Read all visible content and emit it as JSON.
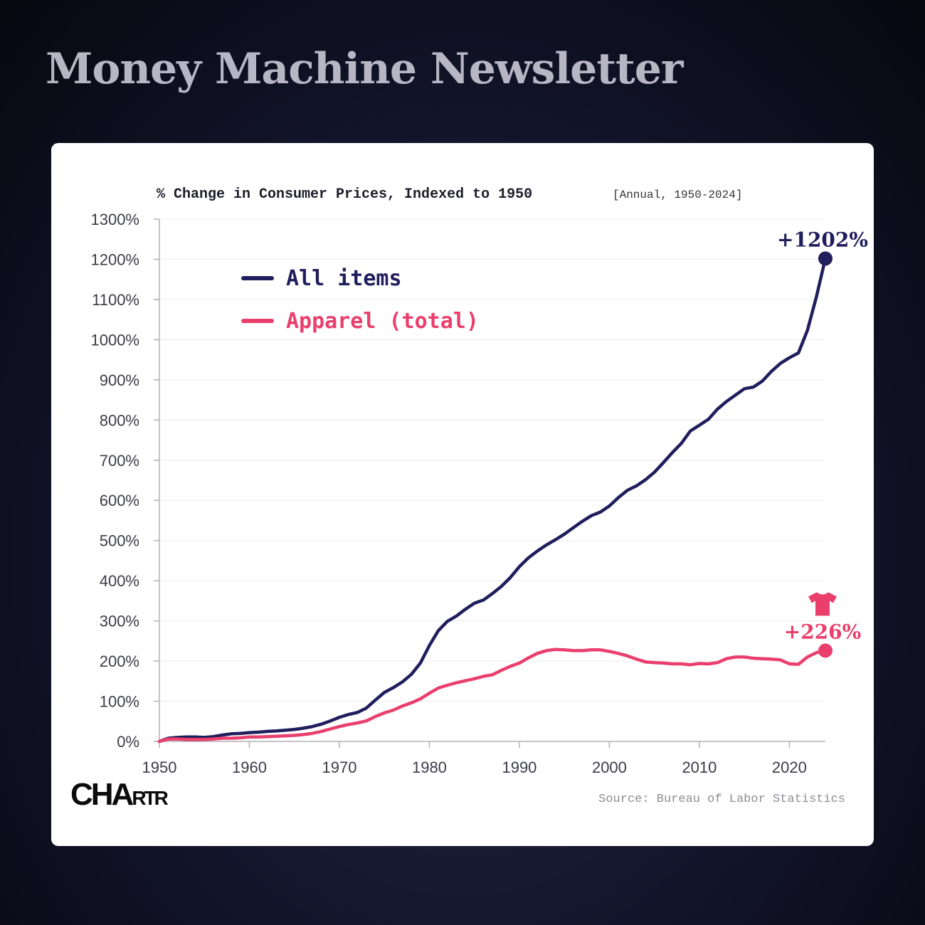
{
  "page": {
    "newsletter_title": "Money Machine Newsletter",
    "brand": {
      "main": "CHA",
      "small": "RTR"
    },
    "source": "Source: Bureau of Labor Statistics"
  },
  "colors": {
    "all_items": "#201e5c",
    "apparel": "#ea3f6c"
  },
  "chart_data": {
    "type": "line",
    "title": "% Change in Consumer Prices, Indexed to 1950",
    "subtitle": "[Annual, 1950-2024]",
    "xlabel": "",
    "ylabel": "",
    "xlim": [
      1950,
      2024
    ],
    "ylim": [
      0,
      1300
    ],
    "x_ticks": [
      1950,
      1960,
      1970,
      1980,
      1990,
      2000,
      2010,
      2020
    ],
    "y_ticks": [
      0,
      100,
      200,
      300,
      400,
      500,
      600,
      700,
      800,
      900,
      1000,
      1100,
      1200,
      1300
    ],
    "y_tick_suffix": "%",
    "grid": "horizontal",
    "legend_position": "top-left",
    "series": [
      {
        "name": "All items",
        "color_key": "all_items",
        "end_label": "+1202%",
        "x": [
          1950,
          1951,
          1952,
          1953,
          1954,
          1955,
          1956,
          1957,
          1958,
          1959,
          1960,
          1961,
          1962,
          1963,
          1964,
          1965,
          1966,
          1967,
          1968,
          1969,
          1970,
          1971,
          1972,
          1973,
          1974,
          1975,
          1976,
          1977,
          1978,
          1979,
          1980,
          1981,
          1982,
          1983,
          1984,
          1985,
          1986,
          1987,
          1988,
          1989,
          1990,
          1991,
          1992,
          1993,
          1994,
          1995,
          1996,
          1997,
          1998,
          1999,
          2000,
          2001,
          2002,
          2003,
          2004,
          2005,
          2006,
          2007,
          2008,
          2009,
          2010,
          2011,
          2012,
          2013,
          2014,
          2015,
          2016,
          2017,
          2018,
          2019,
          2020,
          2021,
          2022,
          2023,
          2024
        ],
        "values": [
          0,
          8,
          10,
          11,
          11,
          10,
          12,
          16,
          19,
          20,
          22,
          23,
          25,
          26,
          28,
          30,
          33,
          37,
          43,
          51,
          60,
          67,
          72,
          83,
          103,
          122,
          134,
          148,
          167,
          195,
          239,
          276,
          299,
          312,
          329,
          344,
          352,
          368,
          386,
          408,
          435,
          457,
          474,
          489,
          502,
          516,
          532,
          548,
          562,
          571,
          586,
          607,
          625,
          636,
          651,
          670,
          694,
          719,
          742,
          773,
          787,
          802,
          827,
          846,
          862,
          878,
          882,
          897,
          921,
          941,
          955,
          967,
          1023,
          1107,
          1202
        ]
      },
      {
        "name": "Apparel (total)",
        "color_key": "apparel",
        "end_label": "+226%",
        "x": [
          1950,
          1951,
          1952,
          1953,
          1954,
          1955,
          1956,
          1957,
          1958,
          1959,
          1960,
          1961,
          1962,
          1963,
          1964,
          1965,
          1966,
          1967,
          1968,
          1969,
          1970,
          1971,
          1972,
          1973,
          1974,
          1975,
          1976,
          1977,
          1978,
          1979,
          1980,
          1981,
          1982,
          1983,
          1984,
          1985,
          1986,
          1987,
          1988,
          1989,
          1990,
          1991,
          1992,
          1993,
          1994,
          1995,
          1996,
          1997,
          1998,
          1999,
          2000,
          2001,
          2002,
          2003,
          2004,
          2005,
          2006,
          2007,
          2008,
          2009,
          2010,
          2011,
          2012,
          2013,
          2014,
          2015,
          2016,
          2017,
          2018,
          2019,
          2020,
          2021,
          2022,
          2023,
          2024
        ],
        "values": [
          0,
          6,
          6,
          5,
          5,
          5,
          6,
          8,
          8,
          9,
          11,
          11,
          12,
          13,
          14,
          15,
          17,
          20,
          25,
          31,
          37,
          42,
          46,
          51,
          62,
          71,
          78,
          88,
          96,
          106,
          120,
          133,
          140,
          146,
          151,
          156,
          162,
          166,
          177,
          187,
          195,
          208,
          219,
          226,
          229,
          228,
          226,
          226,
          228,
          228,
          224,
          219,
          213,
          205,
          198,
          196,
          195,
          193,
          193,
          191,
          194,
          193,
          196,
          206,
          210,
          210,
          207,
          206,
          205,
          203,
          193,
          192,
          210,
          221,
          226
        ]
      }
    ]
  }
}
